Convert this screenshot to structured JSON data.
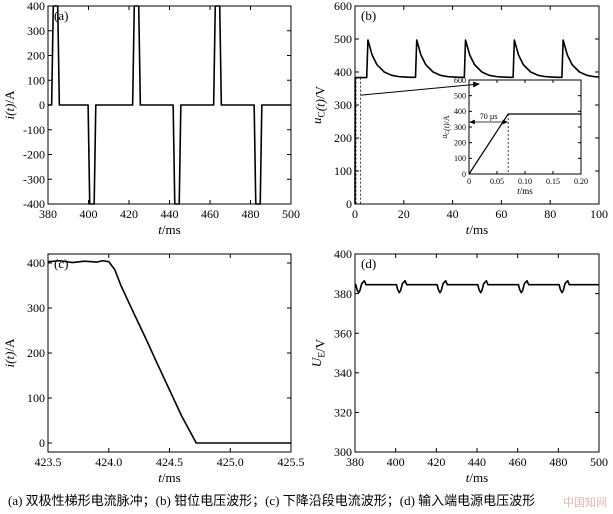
{
  "caption": "(a)  双极性梯形电流脉冲；(b)  钳位电压波形；(c)  下降沿段电流波形；(d)  输入端电源电压波形",
  "watermark": "中国知网",
  "chart_data": [
    {
      "panel": "(a)",
      "type": "line",
      "xlabel": "t/ms",
      "ylabel": "i(t)/A",
      "xlim": [
        380,
        500
      ],
      "ylim": [
        -400,
        400
      ],
      "xticks": [
        "380",
        "400",
        "420",
        "440",
        "460",
        "480",
        "500"
      ],
      "yticks": [
        "400",
        "300",
        "200",
        "100",
        "0",
        "-100",
        "-200",
        "-300",
        "-400"
      ],
      "series": [
        {
          "x": [
            380,
            381.8,
            382.6,
            384.8,
            385.6,
            399.8,
            400.6,
            402.8,
            403.6,
            421.8,
            422.6,
            424.8,
            425.6,
            441.8,
            442.6,
            444.8,
            445.6,
            461.8,
            462.6,
            464.8,
            465.6,
            481.8,
            482.6,
            484.8,
            485.6,
            500
          ],
          "y": [
            0,
            0,
            400,
            400,
            0,
            0,
            -400,
            -400,
            0,
            0,
            400,
            400,
            0,
            0,
            -400,
            -400,
            0,
            0,
            400,
            400,
            0,
            0,
            -400,
            -400,
            0,
            0
          ]
        }
      ]
    },
    {
      "panel": "(b)",
      "type": "line",
      "xlabel": "t/ms",
      "ylabel": "uC(t)/V",
      "xlim": [
        0,
        100
      ],
      "ylim": [
        0,
        600
      ],
      "xticks": [
        "0",
        "20",
        "40",
        "60",
        "80",
        "100"
      ],
      "yticks": [
        "600",
        "500",
        "400",
        "300",
        "200",
        "100",
        "0"
      ],
      "series": [
        {
          "x": [
            0,
            0.07,
            2.6,
            4.8,
            5.3,
            7,
            9,
            12,
            15,
            18,
            20,
            22.9,
            24.8,
            25.3,
            27,
            29,
            32,
            35,
            38,
            40,
            42.9,
            44.8,
            45.3,
            47,
            49,
            52,
            55,
            58,
            60,
            62.9,
            64.8,
            65.3,
            67,
            69,
            72,
            75,
            78,
            80,
            82.9,
            84.8,
            85.3,
            87,
            89,
            92,
            95,
            98,
            100
          ],
          "y": [
            0,
            383,
            383,
            383,
            497,
            452,
            422,
            400,
            390,
            386,
            385,
            384,
            384,
            497,
            452,
            422,
            400,
            390,
            386,
            385,
            384,
            384,
            497,
            452,
            422,
            400,
            390,
            386,
            385,
            384,
            384,
            497,
            452,
            422,
            400,
            390,
            386,
            385,
            384,
            384,
            497,
            452,
            422,
            400,
            390,
            386,
            385
          ]
        }
      ],
      "inset": {
        "xlabel": "t/ms",
        "ylabel": "uC(t)/A",
        "xlim": [
          0,
          0.2
        ],
        "ylim": [
          0,
          600
        ],
        "xticks": [
          "0",
          "0.05",
          "0.10",
          "0.15",
          "0.20"
        ],
        "yticks": [
          "600",
          "500",
          "400",
          "300",
          "200",
          "100",
          "0"
        ],
        "annotation": "70 µs",
        "series": [
          {
            "x": [
              0,
              0.07,
              0.2
            ],
            "y": [
              0,
              383,
              383
            ]
          }
        ]
      }
    },
    {
      "panel": "(c)",
      "type": "line",
      "xlabel": "t/ms",
      "ylabel": "i(t)/A",
      "xlim": [
        423.5,
        425.5
      ],
      "ylim": [
        -20,
        420
      ],
      "xticks": [
        "423.5",
        "424.0",
        "424.5",
        "425.0",
        "425.5"
      ],
      "yticks": [
        "400",
        "300",
        "200",
        "100",
        "0"
      ],
      "series": [
        {
          "x": [
            423.5,
            423.6,
            423.7,
            423.8,
            423.9,
            423.95,
            424.0,
            424.05,
            424.1,
            424.2,
            424.3,
            424.4,
            424.5,
            424.6,
            424.72,
            425.5
          ],
          "y": [
            403,
            405,
            401,
            404,
            402,
            405,
            403,
            385,
            350,
            292,
            235,
            176,
            118,
            60,
            0,
            0
          ]
        }
      ]
    },
    {
      "panel": "(d)",
      "type": "line",
      "xlabel": "t/ms",
      "ylabel": "UE/V",
      "xlim": [
        380,
        500
      ],
      "ylim": [
        300,
        400
      ],
      "xticks": [
        "380",
        "400",
        "420",
        "440",
        "460",
        "480",
        "500"
      ],
      "yticks": [
        "400",
        "380",
        "360",
        "340",
        "320",
        "300"
      ],
      "series": [
        {
          "x": [
            380,
            380.4,
            381,
            381.8,
            382.4,
            383.3,
            384.6,
            385.4,
            400.4,
            401,
            401.8,
            402.4,
            403.3,
            404.6,
            405.4,
            420.4,
            421,
            421.8,
            422.4,
            423.3,
            424.6,
            425.4,
            440.4,
            441,
            441.8,
            442.4,
            443.3,
            444.6,
            445.4,
            460.4,
            461,
            461.8,
            462.4,
            463.3,
            464.6,
            465.4,
            480.4,
            481,
            481.8,
            482.4,
            483.3,
            484.6,
            485.4,
            500
          ],
          "y": [
            384.5,
            384.5,
            382,
            380.5,
            381.5,
            385,
            386.5,
            384.5,
            384.5,
            382,
            380.5,
            381.5,
            385,
            386.5,
            384.5,
            384.5,
            382,
            380.5,
            381.5,
            385,
            386.5,
            384.5,
            384.5,
            382,
            380.5,
            381.5,
            385,
            386.5,
            384.5,
            384.5,
            382,
            380.5,
            381.5,
            385,
            386.5,
            384.5,
            384.5,
            382,
            380.5,
            381.5,
            385,
            386.5,
            384.5,
            384.5
          ]
        }
      ]
    }
  ]
}
